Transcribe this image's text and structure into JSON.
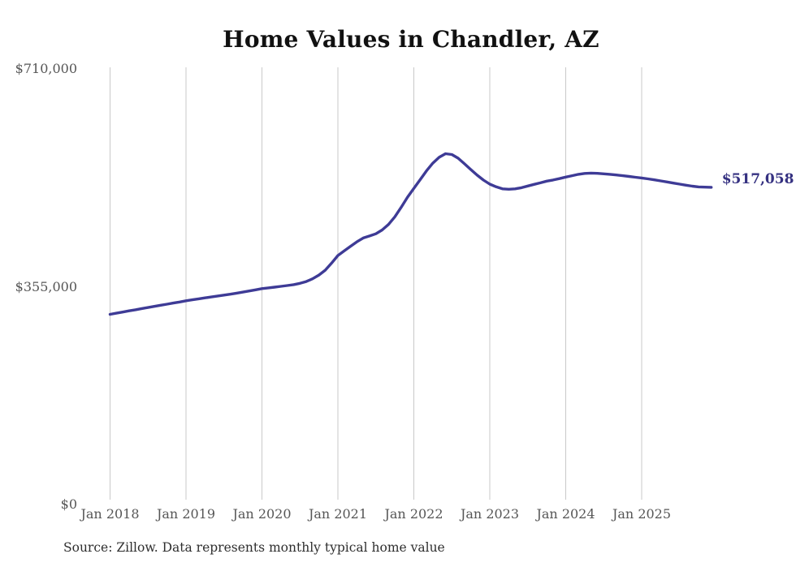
{
  "title": "Home Values in Chandler, AZ",
  "source_note": "Source: Zillow. Data represents monthly typical home value",
  "end_label": "$517,058",
  "colors": {
    "line": "#3e3b96",
    "end_label": "#353181",
    "grid": "#c9c9c9",
    "axis_text": "#565656",
    "title_text": "#111111",
    "source_text": "#2e2e2e",
    "background": "#ffffff"
  },
  "chart_data": {
    "type": "line",
    "title": "Home Values in Chandler, AZ",
    "series_name": "Typical home value (monthly)",
    "xlabel": "",
    "ylabel": "",
    "ylim": [
      0,
      710000
    ],
    "grid": "vertical-only",
    "legend": "none",
    "y_ticks": [
      {
        "label": "$0",
        "value": 0
      },
      {
        "label": "$355,000",
        "value": 355000
      },
      {
        "label": "$710,000",
        "value": 710000
      }
    ],
    "x_ticks": [
      "Jan 2018",
      "Jan 2019",
      "Jan 2020",
      "Jan 2021",
      "Jan 2022",
      "Jan 2023",
      "Jan 2024",
      "Jan 2025"
    ],
    "end_value": 517058,
    "end_label": "$517,058",
    "months": [
      "2018-01",
      "2018-02",
      "2018-03",
      "2018-04",
      "2018-05",
      "2018-06",
      "2018-07",
      "2018-08",
      "2018-09",
      "2018-10",
      "2018-11",
      "2018-12",
      "2019-01",
      "2019-02",
      "2019-03",
      "2019-04",
      "2019-05",
      "2019-06",
      "2019-07",
      "2019-08",
      "2019-09",
      "2019-10",
      "2019-11",
      "2019-12",
      "2020-01",
      "2020-02",
      "2020-03",
      "2020-04",
      "2020-05",
      "2020-06",
      "2020-07",
      "2020-08",
      "2020-09",
      "2020-10",
      "2020-11",
      "2020-12",
      "2021-01",
      "2021-02",
      "2021-03",
      "2021-04",
      "2021-05",
      "2021-06",
      "2021-07",
      "2021-08",
      "2021-09",
      "2021-10",
      "2021-11",
      "2021-12",
      "2022-01",
      "2022-02",
      "2022-03",
      "2022-04",
      "2022-05",
      "2022-06",
      "2022-07",
      "2022-08",
      "2022-09",
      "2022-10",
      "2022-11",
      "2022-12",
      "2023-01",
      "2023-02",
      "2023-03",
      "2023-04",
      "2023-05",
      "2023-06",
      "2023-07",
      "2023-08",
      "2023-09",
      "2023-10",
      "2023-11",
      "2023-12",
      "2024-01",
      "2024-02",
      "2024-03",
      "2024-04",
      "2024-05",
      "2024-06",
      "2024-07",
      "2024-08",
      "2024-09",
      "2024-10",
      "2024-11",
      "2024-12",
      "2025-01",
      "2025-02",
      "2025-03",
      "2025-04",
      "2025-05",
      "2025-06",
      "2025-07",
      "2025-08",
      "2025-09",
      "2025-10",
      "2025-11",
      "2025-12"
    ],
    "values": [
      310000,
      311900,
      313800,
      315700,
      317500,
      319400,
      321200,
      323000,
      324800,
      326600,
      328400,
      330200,
      332100,
      333700,
      335300,
      336900,
      338400,
      339900,
      341400,
      342900,
      344500,
      346300,
      348100,
      350000,
      352000,
      353200,
      354400,
      355600,
      357000,
      358500,
      360500,
      363500,
      368000,
      374000,
      382000,
      393500,
      405900,
      413500,
      421000,
      428300,
      434500,
      437800,
      441400,
      447500,
      456500,
      469000,
      484500,
      501000,
      515200,
      529500,
      544000,
      556500,
      566000,
      571900,
      570500,
      564500,
      555500,
      546000,
      536900,
      528900,
      522200,
      517900,
      514600,
      513900,
      514600,
      516500,
      519200,
      521800,
      524400,
      527100,
      529000,
      531300,
      533700,
      536000,
      538300,
      539700,
      540200,
      539800,
      539000,
      538200,
      537200,
      536000,
      534800,
      533500,
      532300,
      530800,
      529200,
      527500,
      525800,
      524000,
      522200,
      520500,
      519000,
      517800,
      517400,
      517058
    ]
  }
}
